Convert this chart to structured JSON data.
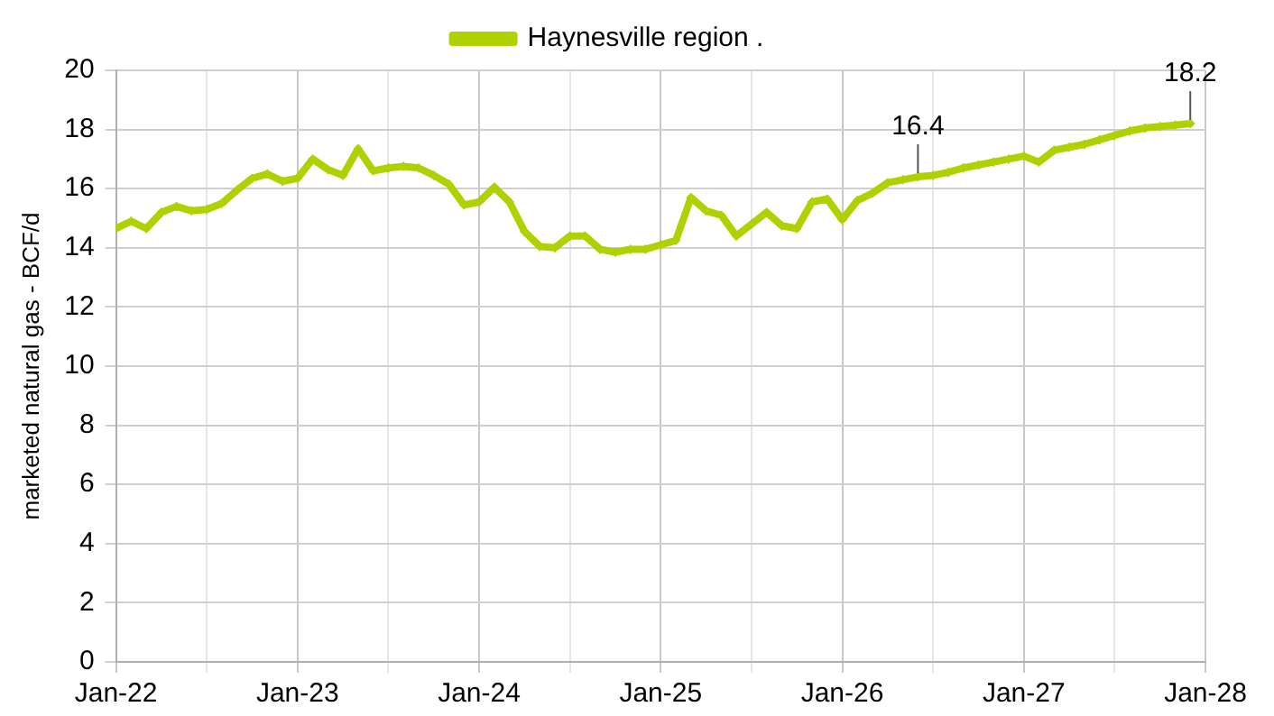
{
  "chart_data": {
    "type": "line",
    "ylabel": "marketed natural gas - BCF/d",
    "x": [
      "2022-01",
      "2022-02",
      "2022-03",
      "2022-04",
      "2022-05",
      "2022-06",
      "2022-07",
      "2022-08",
      "2022-09",
      "2022-10",
      "2022-11",
      "2022-12",
      "2023-01",
      "2023-02",
      "2023-03",
      "2023-04",
      "2023-05",
      "2023-06",
      "2023-07",
      "2023-08",
      "2023-09",
      "2023-10",
      "2023-11",
      "2023-12",
      "2024-01",
      "2024-02",
      "2024-03",
      "2024-04",
      "2024-05",
      "2024-06",
      "2024-07",
      "2024-08",
      "2024-09",
      "2024-10",
      "2024-11",
      "2024-12",
      "2025-01",
      "2025-02",
      "2025-03",
      "2025-04",
      "2025-05",
      "2025-06",
      "2025-07",
      "2025-08",
      "2025-09",
      "2025-10",
      "2025-11",
      "2025-12",
      "2026-01",
      "2026-02",
      "2026-03",
      "2026-04",
      "2026-05",
      "2026-06",
      "2026-07",
      "2026-08",
      "2026-09",
      "2026-10",
      "2026-11",
      "2026-12",
      "2027-01",
      "2027-02",
      "2027-03",
      "2027-04",
      "2027-05",
      "2027-06",
      "2027-07",
      "2027-08",
      "2027-09",
      "2027-10",
      "2027-11",
      "2027-12"
    ],
    "series": [
      {
        "name": "Haynesville region .",
        "color": "#b0d000",
        "values": [
          14.65,
          14.9,
          14.65,
          15.2,
          15.4,
          15.25,
          15.3,
          15.5,
          15.95,
          16.35,
          16.5,
          16.25,
          16.35,
          17.0,
          16.65,
          16.45,
          17.35,
          16.6,
          16.7,
          16.75,
          16.7,
          16.45,
          16.15,
          15.45,
          15.55,
          16.05,
          15.55,
          14.55,
          14.05,
          14.0,
          14.4,
          14.4,
          13.95,
          13.85,
          13.95,
          13.95,
          14.1,
          14.25,
          15.7,
          15.25,
          15.1,
          14.4,
          14.8,
          15.2,
          14.75,
          14.65,
          15.55,
          15.65,
          14.95,
          15.6,
          15.85,
          16.2,
          16.3,
          16.4,
          16.45,
          16.55,
          16.7,
          16.8,
          16.9,
          17.0,
          17.1,
          16.9,
          17.3,
          17.4,
          17.5,
          17.65,
          17.8,
          17.95,
          18.05,
          18.1,
          18.15,
          18.2
        ]
      }
    ],
    "xlim": [
      "2022-01",
      "2028-01"
    ],
    "xticks": [
      {
        "value": "2022-01",
        "label": "Jan-22"
      },
      {
        "value": "2022-07",
        "label": null
      },
      {
        "value": "2023-01",
        "label": "Jan-23"
      },
      {
        "value": "2023-07",
        "label": null
      },
      {
        "value": "2024-01",
        "label": "Jan-24"
      },
      {
        "value": "2024-07",
        "label": null
      },
      {
        "value": "2025-01",
        "label": "Jan-25"
      },
      {
        "value": "2025-07",
        "label": null
      },
      {
        "value": "2026-01",
        "label": "Jan-26"
      },
      {
        "value": "2026-07",
        "label": null
      },
      {
        "value": "2027-01",
        "label": "Jan-27"
      },
      {
        "value": "2027-07",
        "label": null
      },
      {
        "value": "2028-01",
        "label": "Jan-28"
      }
    ],
    "ylim": [
      0,
      20
    ],
    "yticks": [
      0,
      2,
      4,
      6,
      8,
      10,
      12,
      14,
      16,
      18,
      20
    ],
    "grid": true,
    "legend": "top",
    "marker": "cross",
    "line_style": "solid",
    "annotations": [
      {
        "text": "16.4",
        "x": "2026-06",
        "y": 16.4
      },
      {
        "text": "18.2",
        "x": "2027-12",
        "y": 18.2
      }
    ]
  }
}
